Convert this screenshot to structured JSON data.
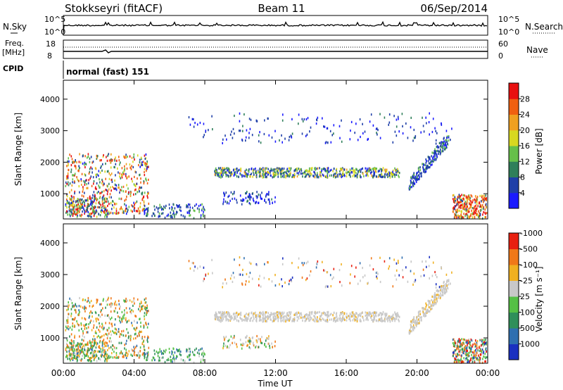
{
  "header": {
    "station": "Stokkseyri (fitACF)",
    "beam": "Beam 11",
    "date": "06/Sep/2014"
  },
  "strip": {
    "nsky_label": "N.Sky",
    "nsearch_label": "N.Search",
    "noise_ticks_left": [
      "10^5",
      "10^0"
    ],
    "noise_ticks_right": [
      "10^5",
      "10^0"
    ],
    "freq_label": "Freq.",
    "freq_unit": "[MHz]",
    "freq_ticks": [
      "18",
      "8"
    ],
    "nave_label": "Nave",
    "nave_ticks": [
      "60",
      "0"
    ],
    "cpid_label": "CPID",
    "cpid_value": "normal (fast) 151"
  },
  "chart_data": [
    {
      "type": "heatmap",
      "panel": "power",
      "ylabel": "Slant Range [km]",
      "y_ticks": [
        "1000",
        "2000",
        "3000",
        "4000"
      ],
      "ylim": [
        200,
        4600
      ],
      "colorbar_label": "Power [dB]",
      "colorbar_ticks": [
        "4",
        "8",
        "12",
        "16",
        "20",
        "24",
        "28"
      ],
      "colorbar_colors": [
        "#1a1aff",
        "#1f3fa8",
        "#2f7f5a",
        "#66c04a",
        "#d8d820",
        "#f0a020",
        "#f06010",
        "#e81010"
      ]
    },
    {
      "type": "heatmap",
      "panel": "velocity",
      "ylabel": "Slant Range [km]",
      "y_ticks": [
        "1000",
        "2000",
        "3000",
        "4000"
      ],
      "ylim": [
        200,
        4600
      ],
      "colorbar_label": "Velocity [m s⁻¹]",
      "colorbar_ticks": [
        "1000",
        "500",
        "100",
        "25",
        "-25",
        "-100",
        "-500",
        "-1000"
      ],
      "colorbar_colors": [
        "#1a30c0",
        "#2f6fb0",
        "#2f8f5a",
        "#55c045",
        "#c8c8c8",
        "#f0b020",
        "#f07818",
        "#e82010"
      ]
    }
  ],
  "xaxis": {
    "ticks": [
      "00:00",
      "04:00",
      "08:00",
      "12:00",
      "16:00",
      "20:00",
      "00:00"
    ],
    "label": "Time UT"
  }
}
